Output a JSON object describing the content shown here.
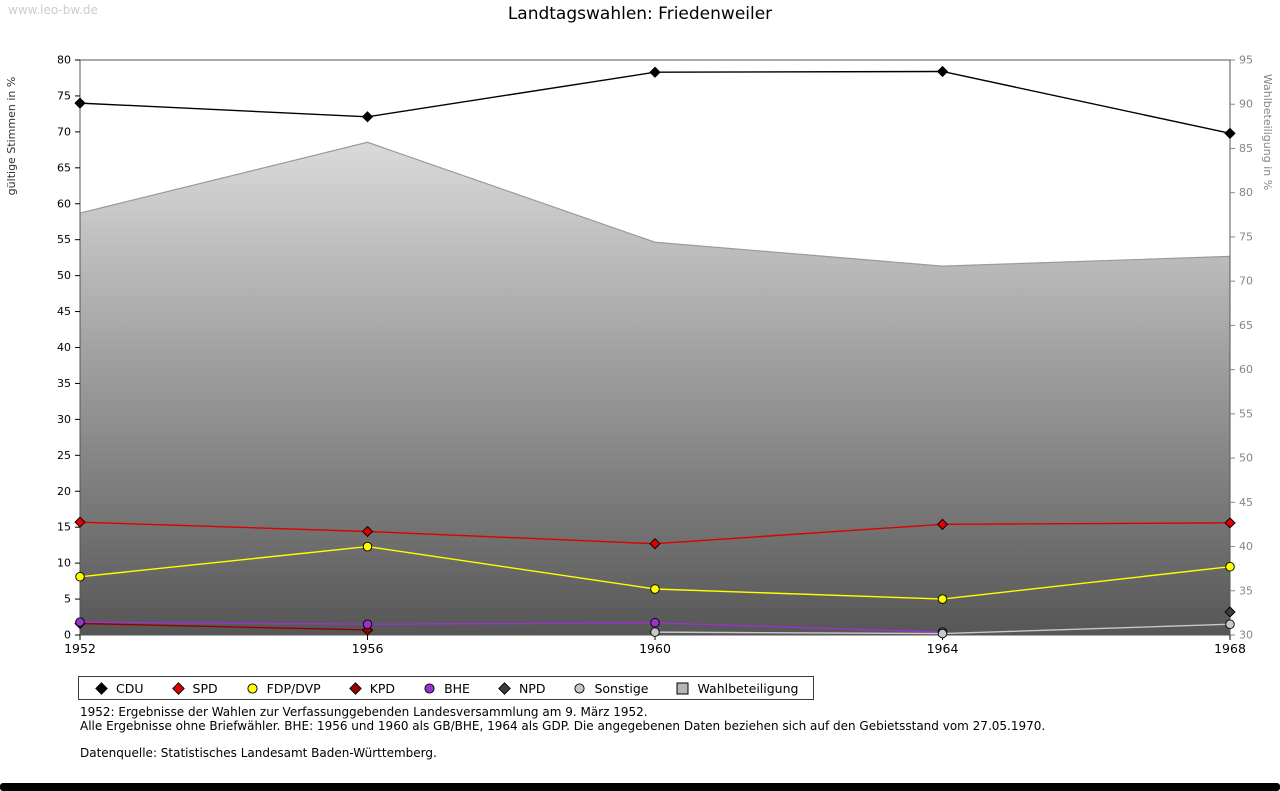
{
  "watermark": "www.leo-bw.de",
  "title": "Landtagswahlen: Friedenweiler",
  "chart_data": {
    "type": "line",
    "title": "Landtagswahlen: Friedenweiler",
    "x": [
      1952,
      1956,
      1960,
      1964,
      1968
    ],
    "grid": false,
    "legend_position": "bottom",
    "left_axis": {
      "label": "gültige Stimmen in %",
      "min": 0,
      "max": 80,
      "step": 5
    },
    "right_axis": {
      "label": "Wahlbeteiligung in %",
      "min": 30,
      "max": 95,
      "step": 5
    },
    "series": [
      {
        "name": "CDU",
        "axis": "left",
        "marker": "diamond",
        "color": "#000000",
        "values": [
          74.0,
          72.1,
          78.3,
          78.4,
          69.8
        ]
      },
      {
        "name": "SPD",
        "axis": "left",
        "marker": "diamond",
        "color": "#dd0000",
        "values": [
          15.7,
          14.4,
          12.7,
          15.4,
          15.6
        ]
      },
      {
        "name": "FDP/DVP",
        "axis": "left",
        "marker": "circle",
        "color": "#ffff00",
        "values": [
          8.1,
          12.3,
          6.4,
          5.0,
          9.5
        ]
      },
      {
        "name": "KPD",
        "axis": "left",
        "marker": "diamond",
        "color": "#990000",
        "values": [
          1.6,
          0.7,
          null,
          null,
          null
        ]
      },
      {
        "name": "BHE",
        "axis": "left",
        "marker": "circle",
        "color": "#9933cc",
        "values": [
          1.8,
          1.5,
          1.7,
          0.4,
          null
        ]
      },
      {
        "name": "NPD",
        "axis": "left",
        "marker": "diamond",
        "color": "#3d3d3d",
        "values": [
          null,
          null,
          null,
          null,
          3.2
        ]
      },
      {
        "name": "Sonstige",
        "axis": "left",
        "marker": "circle",
        "color": "#c8c8c8",
        "values": [
          null,
          null,
          0.4,
          0.2,
          1.5
        ]
      },
      {
        "name": "Wahlbeteiligung",
        "axis": "right",
        "type": "area",
        "marker": "square",
        "color": "#b4b4b4",
        "line_color": "#9a9a9a",
        "fill_gradient": [
          "#f0f0f0",
          "#565656"
        ],
        "values": [
          77.7,
          85.7,
          74.4,
          71.7,
          72.8
        ]
      }
    ]
  },
  "footnotes": {
    "line1": "1952: Ergebnisse der Wahlen zur Verfassunggebenden Landesversammlung am 9. März 1952.",
    "line2": "Alle Ergebnisse ohne Briefwähler. BHE: 1956 und 1960 als GB/BHE, 1964 als GDP. Die angegebenen Daten beziehen sich auf den Gebietsstand vom 27.05.1970.",
    "source": "Datenquelle: Statistisches Landesamt Baden-Württemberg."
  }
}
